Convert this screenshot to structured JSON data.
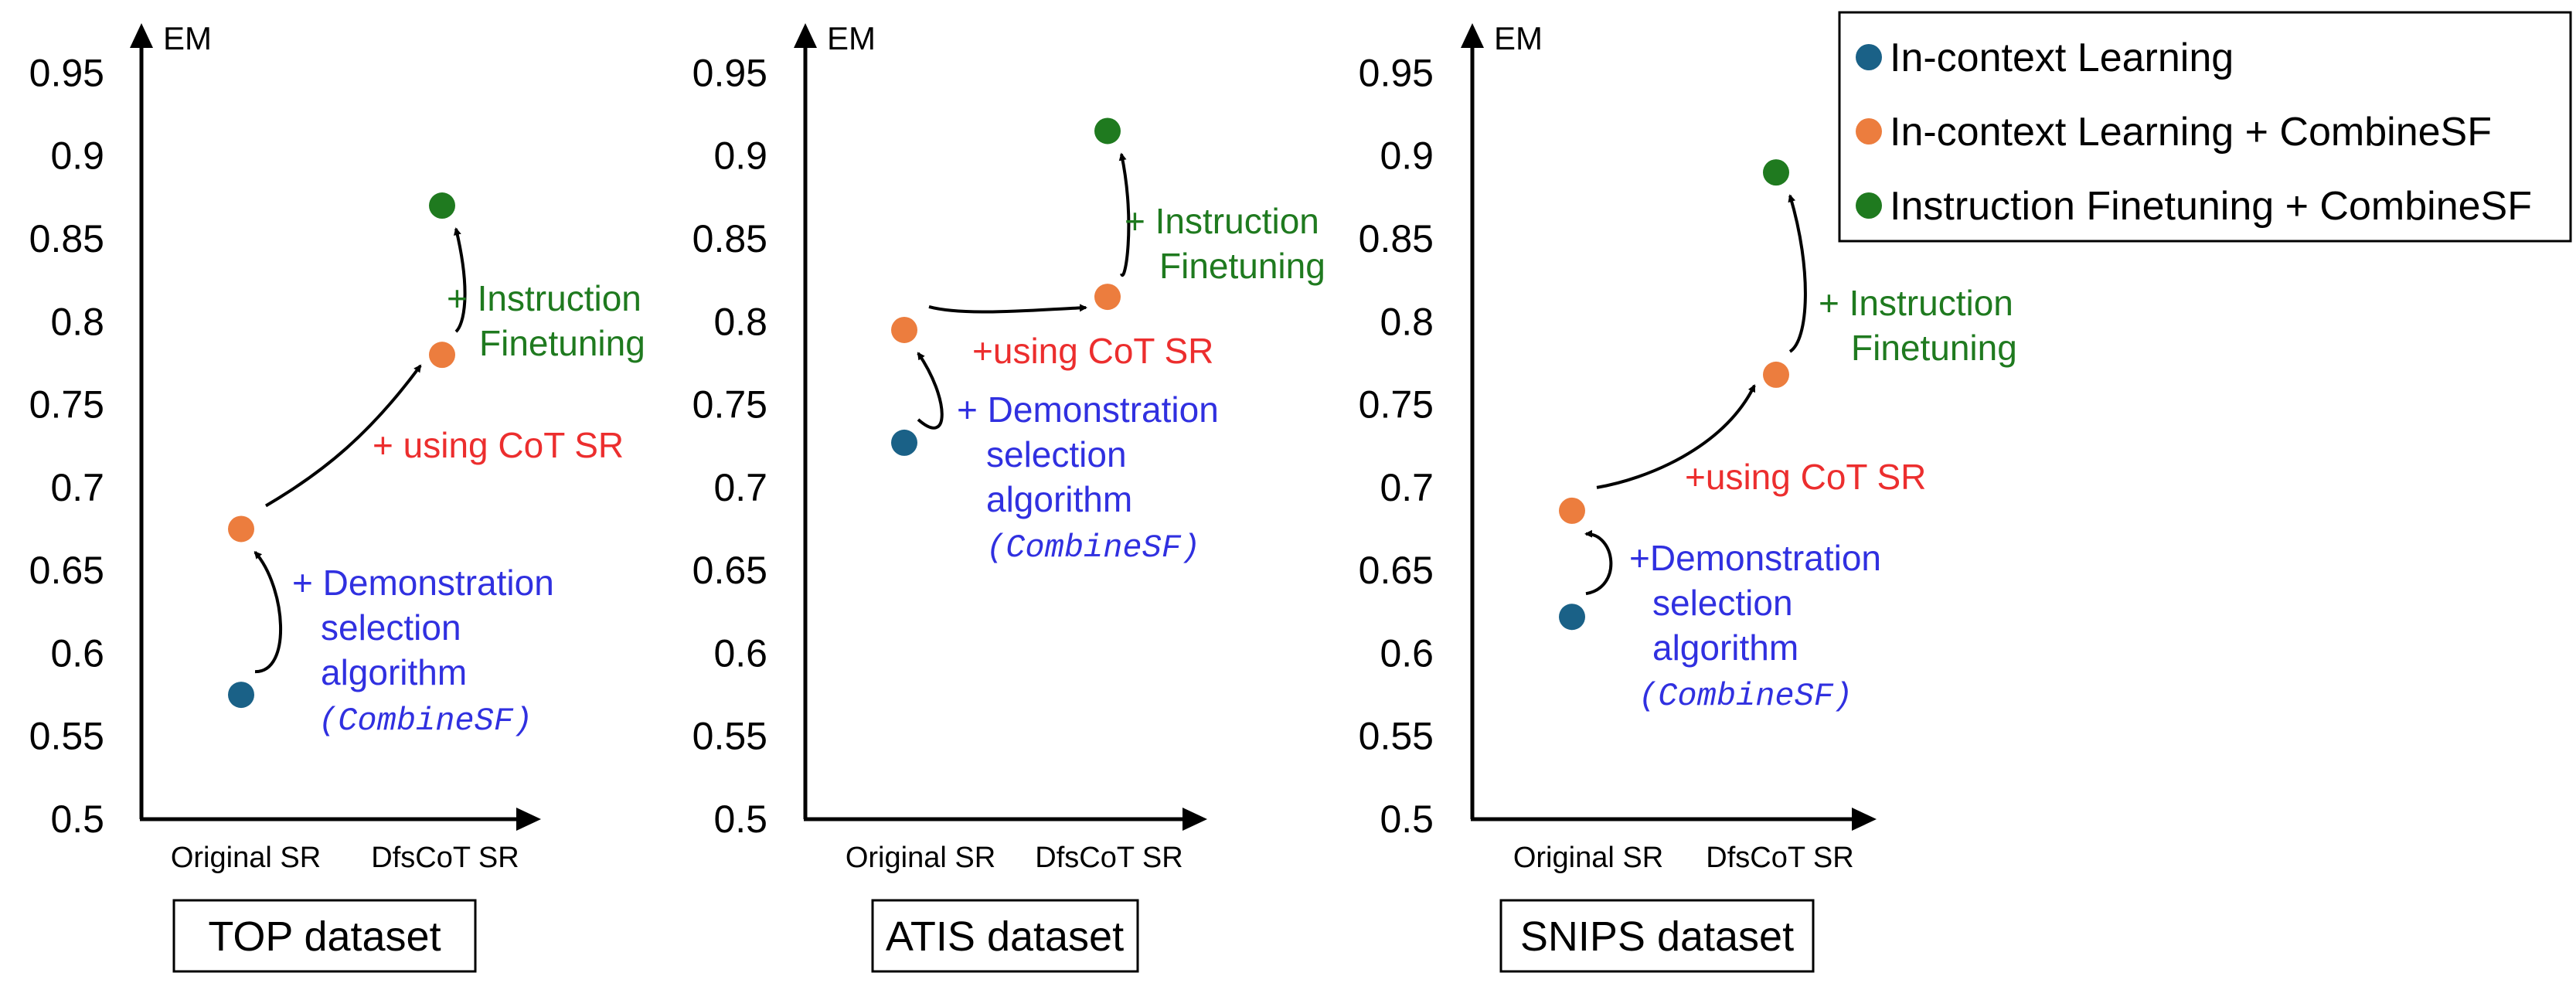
{
  "colors": {
    "icl": "#1a6187",
    "icl_combine": "#ec7d3e",
    "ift_combine": "#1f7a1f",
    "demo_text": "#3030e0",
    "cot_text": "#ec2e2e",
    "ift_text": "#1f7a1f"
  },
  "legend": [
    {
      "label": "In-context Learning",
      "color_key": "icl"
    },
    {
      "label": "In-context Learning + CombineSF",
      "color_key": "icl_combine"
    },
    {
      "label": "Instruction Finetuning + CombineSF",
      "color_key": "ift_combine"
    }
  ],
  "chart_data": [
    {
      "type": "scatter",
      "title": "TOP dataset",
      "ylabel": "EM",
      "categories": [
        "Original SR",
        "DfsCoT SR"
      ],
      "ylim": [
        0.5,
        0.98
      ],
      "yticks": [
        "0.5",
        "0.55",
        "0.6",
        "0.65",
        "0.7",
        "0.75",
        "0.8",
        "0.85",
        "0.9",
        "0.95"
      ],
      "points": [
        {
          "x": "Original SR",
          "y": 0.575,
          "color_key": "icl"
        },
        {
          "x": "Original SR",
          "y": 0.675,
          "color_key": "icl_combine"
        },
        {
          "x": "DfsCoT SR",
          "y": 0.78,
          "color_key": "icl_combine"
        },
        {
          "x": "DfsCoT SR",
          "y": 0.87,
          "color_key": "ift_combine"
        }
      ],
      "annotations": [
        {
          "lines": [
            "+ Demonstration",
            "selection",
            "algorithm"
          ],
          "code": "(CombineSF)",
          "color_key": "demo_text"
        },
        {
          "lines": [
            "+ using CoT SR"
          ],
          "color_key": "cot_text"
        },
        {
          "lines": [
            "+ Instruction",
            "Finetuning"
          ],
          "color_key": "ift_text"
        }
      ]
    },
    {
      "type": "scatter",
      "title": "ATIS dataset",
      "ylabel": "EM",
      "categories": [
        "Original SR",
        "DfsCoT SR"
      ],
      "ylim": [
        0.5,
        0.98
      ],
      "yticks": [
        "0.5",
        "0.55",
        "0.6",
        "0.65",
        "0.7",
        "0.75",
        "0.8",
        "0.85",
        "0.9",
        "0.95"
      ],
      "points": [
        {
          "x": "Original SR",
          "y": 0.727,
          "color_key": "icl"
        },
        {
          "x": "Original SR",
          "y": 0.795,
          "color_key": "icl_combine"
        },
        {
          "x": "DfsCoT SR",
          "y": 0.815,
          "color_key": "icl_combine"
        },
        {
          "x": "DfsCoT SR",
          "y": 0.915,
          "color_key": "ift_combine"
        }
      ],
      "annotations": [
        {
          "lines": [
            "+ Demonstration",
            "selection",
            "algorithm"
          ],
          "code": "(CombineSF)",
          "color_key": "demo_text"
        },
        {
          "lines": [
            "+using CoT SR"
          ],
          "color_key": "cot_text"
        },
        {
          "lines": [
            "+ Instruction",
            "Finetuning"
          ],
          "color_key": "ift_text"
        }
      ]
    },
    {
      "type": "scatter",
      "title": "SNIPS dataset",
      "ylabel": "EM",
      "categories": [
        "Original SR",
        "DfsCoT SR"
      ],
      "ylim": [
        0.5,
        0.98
      ],
      "yticks": [
        "0.5",
        "0.55",
        "0.6",
        "0.65",
        "0.7",
        "0.75",
        "0.8",
        "0.85",
        "0.9",
        "0.95"
      ],
      "points": [
        {
          "x": "Original SR",
          "y": 0.622,
          "color_key": "icl"
        },
        {
          "x": "Original SR",
          "y": 0.686,
          "color_key": "icl_combine"
        },
        {
          "x": "DfsCoT SR",
          "y": 0.768,
          "color_key": "icl_combine"
        },
        {
          "x": "DfsCoT SR",
          "y": 0.89,
          "color_key": "ift_combine"
        }
      ],
      "annotations": [
        {
          "lines": [
            "+Demonstration",
            "selection",
            "algorithm"
          ],
          "code": "(CombineSF)",
          "color_key": "demo_text"
        },
        {
          "lines": [
            "+using CoT SR"
          ],
          "color_key": "cot_text"
        },
        {
          "lines": [
            "+ Instruction",
            "Finetuning"
          ],
          "color_key": "ift_text"
        }
      ]
    }
  ]
}
